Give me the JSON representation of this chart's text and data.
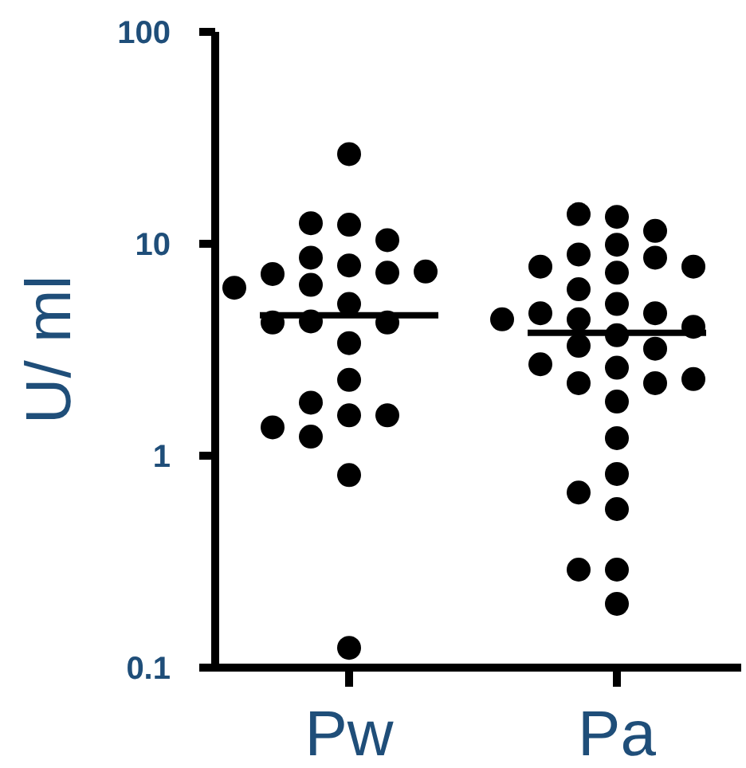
{
  "chart_data": {
    "type": "scatter",
    "ylabel": "U/ ml",
    "log": "y",
    "marker": "circle",
    "categories": [
      "Pw",
      "Pa"
    ],
    "ylim": [
      0.1,
      100
    ],
    "yticks": [
      {
        "value": 0.1,
        "label": "0.1"
      },
      1,
      10,
      100
    ],
    "series": [
      {
        "color": "#000000",
        "x": [
          "Pw",
          "Pw",
          "Pw",
          "Pw",
          "Pw",
          "Pw",
          "Pw",
          "Pw",
          "Pw",
          "Pw",
          "Pw",
          "Pw",
          "Pw",
          "Pw",
          "Pw",
          "Pw",
          "Pw",
          "Pw",
          "Pw",
          "Pw",
          "Pw",
          "Pw",
          "Pw",
          "Pw"
        ],
        "values": [
          26.5,
          12.3,
          12.5,
          10.4,
          7.9,
          8.6,
          7.3,
          7.2,
          7.4,
          6.4,
          6.2,
          5.2,
          4.3,
          4.25,
          4.25,
          3.4,
          2.28,
          1.78,
          1.55,
          1.55,
          1.36,
          1.23,
          0.81,
          0.124
        ]
      },
      {
        "color": "#000000",
        "x": [
          "Pa",
          "Pa",
          "Pa",
          "Pa",
          "Pa",
          "Pa",
          "Pa",
          "Pa",
          "Pa",
          "Pa",
          "Pa",
          "Pa",
          "Pa",
          "Pa",
          "Pa",
          "Pa",
          "Pa",
          "Pa",
          "Pa",
          "Pa",
          "Pa",
          "Pa",
          "Pa",
          "Pa",
          "Pa",
          "Pa",
          "Pa",
          "Pa",
          "Pa",
          "Pa",
          "Pa",
          "Pa"
        ],
        "values": [
          13.4,
          13.8,
          11.5,
          9.9,
          8.9,
          8.6,
          7.8,
          7.3,
          7.8,
          6.1,
          5.2,
          4.7,
          4.7,
          4.4,
          4.06,
          4.4,
          3.7,
          3.3,
          3.2,
          2.6,
          2.7,
          2.2,
          2.2,
          2.3,
          1.8,
          1.21,
          0.82,
          0.67,
          0.56,
          0.29,
          0.29,
          0.2
        ]
      },
      {
        "type": "box",
        "color": "#000000",
        "boxes": [
          {
            "low": 4.6,
            "q1": 4.6,
            "median": 4.6,
            "q3": 4.6,
            "high": 4.6
          },
          {
            "low": 3.8,
            "q1": 3.8,
            "median": 3.8,
            "q3": 3.8,
            "high": 3.8
          }
        ]
      }
    ]
  }
}
